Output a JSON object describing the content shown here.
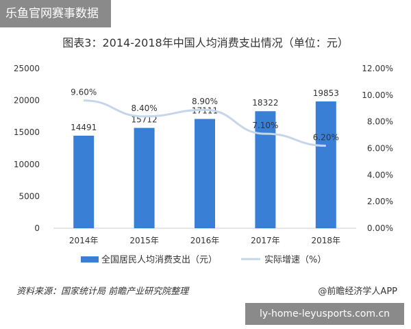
{
  "top_banner": "乐鱼官网赛事数据",
  "bottom_banner": "ly-home-leyusports.com.cn",
  "source": "资料来源：国家统计局 前瞻产业研究院整理",
  "brand": "@前瞻经济学人APP",
  "colors": {
    "bar": "#3a7fd6",
    "line": "#c6d6ea",
    "axis": "#cccccc",
    "text": "#333333"
  },
  "chart_data": {
    "type": "bar",
    "title": "图表3：2014-2018年中国人均消费支出情况（单位：元）",
    "categories": [
      "2014年",
      "2015年",
      "2016年",
      "2017年",
      "2018年"
    ],
    "series": [
      {
        "name": "全国居民人均消费支出（元）",
        "type": "bar",
        "axis": "left",
        "values": [
          14491,
          15712,
          17111,
          18322,
          19853
        ],
        "labels": [
          "14491",
          "15712",
          "17111",
          "18322",
          "19853"
        ]
      },
      {
        "name": "实际增速（%）",
        "type": "line",
        "axis": "right",
        "values": [
          9.6,
          8.4,
          8.9,
          7.1,
          6.2
        ],
        "labels": [
          "9.60%",
          "8.40%",
          "8.90%",
          "7.10%",
          "6.20%"
        ]
      }
    ],
    "y_left": {
      "min": 0,
      "max": 25000,
      "ticks": [
        0,
        5000,
        10000,
        15000,
        20000,
        25000
      ],
      "tick_labels": [
        "0",
        "5000",
        "10000",
        "15000",
        "20000",
        "25000"
      ]
    },
    "y_right": {
      "min": 0,
      "max": 12,
      "ticks": [
        0,
        2,
        4,
        6,
        8,
        10,
        12
      ],
      "tick_labels": [
        "0.00%",
        "2.00%",
        "4.00%",
        "6.00%",
        "8.00%",
        "10.00%",
        "12.00%"
      ]
    },
    "grid": false,
    "legend_position": "bottom"
  }
}
